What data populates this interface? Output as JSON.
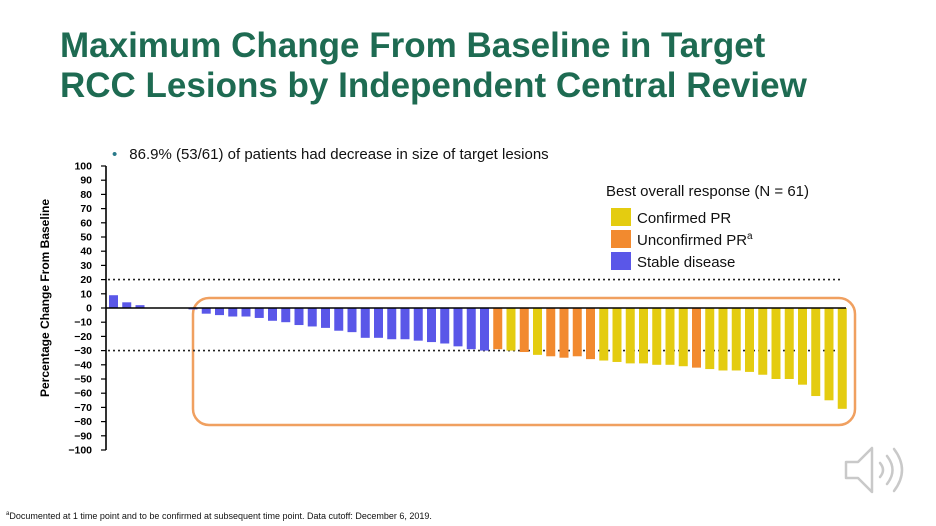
{
  "slide": {
    "title_line1": "Maximum Change From Baseline in Target",
    "title_line2": "RCC Lesions by Independent Central Review",
    "bullet": "86.9% (53/61) of patients had decrease in size of target lesions",
    "footnote_marker": "a",
    "footnote": "Documented at 1 time point and to be confirmed at subsequent time point. Data cutoff: December 6, 2019.",
    "speaker_icon": "speaker-sound-icon"
  },
  "colors": {
    "title": "#1e6b52",
    "confirmed_pr": "#e4cc10",
    "unconfirmed_pr": "#f28a2f",
    "stable_disease": "#5a57e8",
    "highlight_box": "#f0a060"
  },
  "chart_data": {
    "type": "bar",
    "ylabel": "Percentage Change From Baseline",
    "ylim": [
      -100,
      100
    ],
    "yticks": [
      "100",
      "90",
      "80",
      "70",
      "60",
      "50",
      "40",
      "30",
      "20",
      "10",
      "0",
      "−10",
      "−20",
      "−30",
      "−40",
      "−50",
      "−60",
      "−70",
      "−80",
      "−90",
      "−100"
    ],
    "reference_lines": [
      20,
      -30
    ],
    "legend_title": "Best overall response (N = 61)",
    "legend": [
      {
        "label": "Confirmed PR",
        "sup": "",
        "key": "confirmed_pr"
      },
      {
        "label": "Unconfirmed PR",
        "sup": "a",
        "key": "unconfirmed_pr"
      },
      {
        "label": "Stable disease",
        "sup": "",
        "key": "stable_disease"
      }
    ],
    "values": [
      9,
      4,
      2,
      0,
      0,
      0,
      -1,
      -4,
      -5,
      -6,
      -6,
      -7,
      -9,
      -10,
      -12,
      -13,
      -14,
      -16,
      -17,
      -21,
      -21,
      -22,
      -22,
      -23,
      -24,
      -25,
      -27,
      -29,
      -30,
      -29,
      -30,
      -31,
      -33,
      -34,
      -35,
      -34,
      -36,
      -37,
      -38,
      -39,
      -39,
      -40,
      -40,
      -41,
      -42,
      -43,
      -44,
      -44,
      -45,
      -47,
      -50,
      -50,
      -54,
      -62,
      -65,
      -71
    ],
    "response": [
      "SD",
      "SD",
      "SD",
      "SD",
      "SD",
      "SD",
      "SD",
      "SD",
      "SD",
      "SD",
      "SD",
      "SD",
      "SD",
      "SD",
      "SD",
      "SD",
      "SD",
      "SD",
      "SD",
      "SD",
      "SD",
      "SD",
      "SD",
      "SD",
      "SD",
      "SD",
      "SD",
      "SD",
      "SD",
      "uPR",
      "cPR",
      "uPR",
      "cPR",
      "uPR",
      "uPR",
      "uPR",
      "uPR",
      "cPR",
      "cPR",
      "cPR",
      "cPR",
      "cPR",
      "cPR",
      "cPR",
      "uPR",
      "cPR",
      "cPR",
      "cPR",
      "cPR",
      "cPR",
      "cPR",
      "cPR",
      "cPR",
      "cPR",
      "cPR",
      "cPR"
    ]
  }
}
